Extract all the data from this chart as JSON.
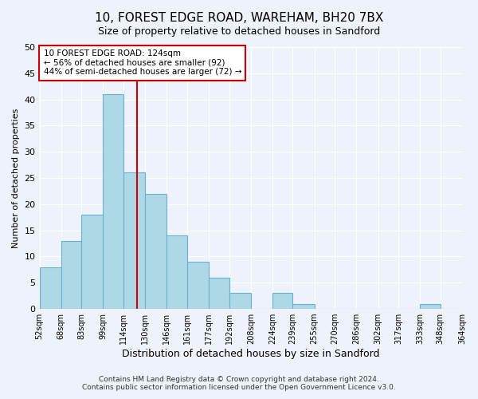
{
  "title": "10, FOREST EDGE ROAD, WAREHAM, BH20 7BX",
  "subtitle": "Size of property relative to detached houses in Sandford",
  "xlabel": "Distribution of detached houses by size in Sandford",
  "ylabel": "Number of detached properties",
  "bin_edges": [
    52,
    68,
    83,
    99,
    114,
    130,
    146,
    161,
    177,
    192,
    208,
    224,
    239,
    255,
    270,
    286,
    302,
    317,
    333,
    348,
    364
  ],
  "bin_counts": [
    8,
    13,
    18,
    41,
    26,
    22,
    14,
    9,
    6,
    3,
    0,
    3,
    1,
    0,
    0,
    0,
    0,
    0,
    1,
    0
  ],
  "bar_color": "#add8e6",
  "bar_edge_color": "#6ab0d4",
  "vline_x": 124,
  "vline_color": "#cc0000",
  "annotation_title": "10 FOREST EDGE ROAD: 124sqm",
  "annotation_line1": "← 56% of detached houses are smaller (92)",
  "annotation_line2": "44% of semi-detached houses are larger (72) →",
  "annotation_box_color": "#ffffff",
  "annotation_box_edge": "#cc0000",
  "tick_labels": [
    "52sqm",
    "68sqm",
    "83sqm",
    "99sqm",
    "114sqm",
    "130sqm",
    "146sqm",
    "161sqm",
    "177sqm",
    "192sqm",
    "208sqm",
    "224sqm",
    "239sqm",
    "255sqm",
    "270sqm",
    "286sqm",
    "302sqm",
    "317sqm",
    "333sqm",
    "348sqm",
    "364sqm"
  ],
  "ylim": [
    0,
    50
  ],
  "yticks": [
    0,
    5,
    10,
    15,
    20,
    25,
    30,
    35,
    40,
    45,
    50
  ],
  "footer_line1": "Contains HM Land Registry data © Crown copyright and database right 2024.",
  "footer_line2": "Contains public sector information licensed under the Open Government Licence v3.0.",
  "background_color": "#eef2fa"
}
